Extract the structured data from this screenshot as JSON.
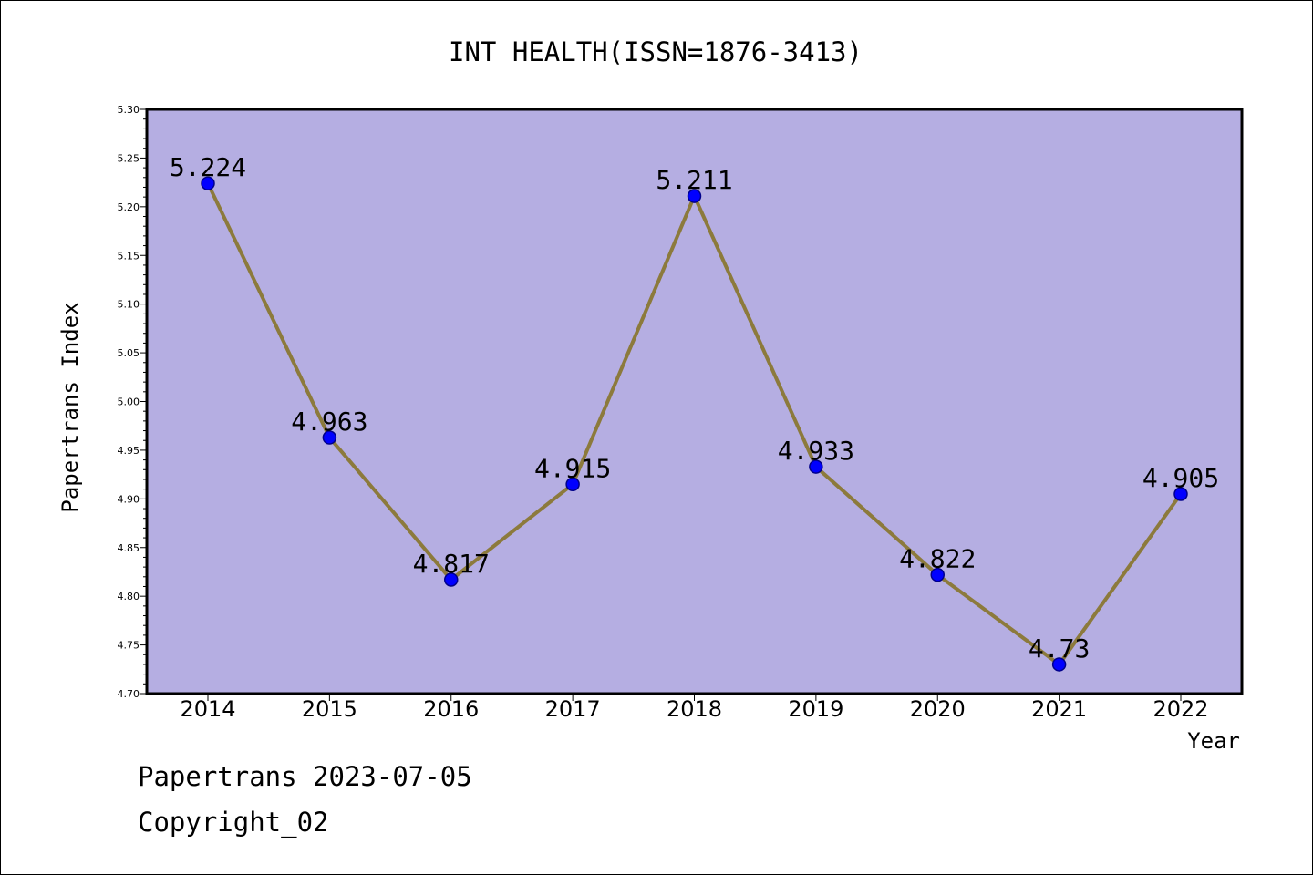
{
  "chart_data": {
    "type": "line",
    "title": "INT HEALTH(ISSN=1876-3413)",
    "xlabel": "Year",
    "ylabel": "Papertrans Index",
    "categories": [
      "2014",
      "2015",
      "2016",
      "2017",
      "2018",
      "2019",
      "2020",
      "2021",
      "2022"
    ],
    "values": [
      5.224,
      4.963,
      4.817,
      4.915,
      5.211,
      4.933,
      4.822,
      4.73,
      4.905
    ],
    "point_labels": [
      "5.224",
      "4.963",
      "4.817",
      "4.915",
      "5.211",
      "4.933",
      "4.822",
      "4.73",
      "4.905"
    ],
    "ylim": [
      4.7,
      5.3
    ],
    "yticks": [
      "4.70",
      "4.75",
      "4.80",
      "4.85",
      "4.90",
      "4.95",
      "5.00",
      "5.05",
      "5.10",
      "5.15",
      "5.20",
      "5.25",
      "5.30"
    ],
    "grid": false,
    "legend": "none",
    "colors": {
      "plot_background": "#b5aee2",
      "line": "#8c7a3c",
      "marker": "#0000ff",
      "marker_edge": "#00008b"
    }
  },
  "footer": {
    "line1": "Papertrans 2023-07-05",
    "line2": "Copyright_02"
  }
}
